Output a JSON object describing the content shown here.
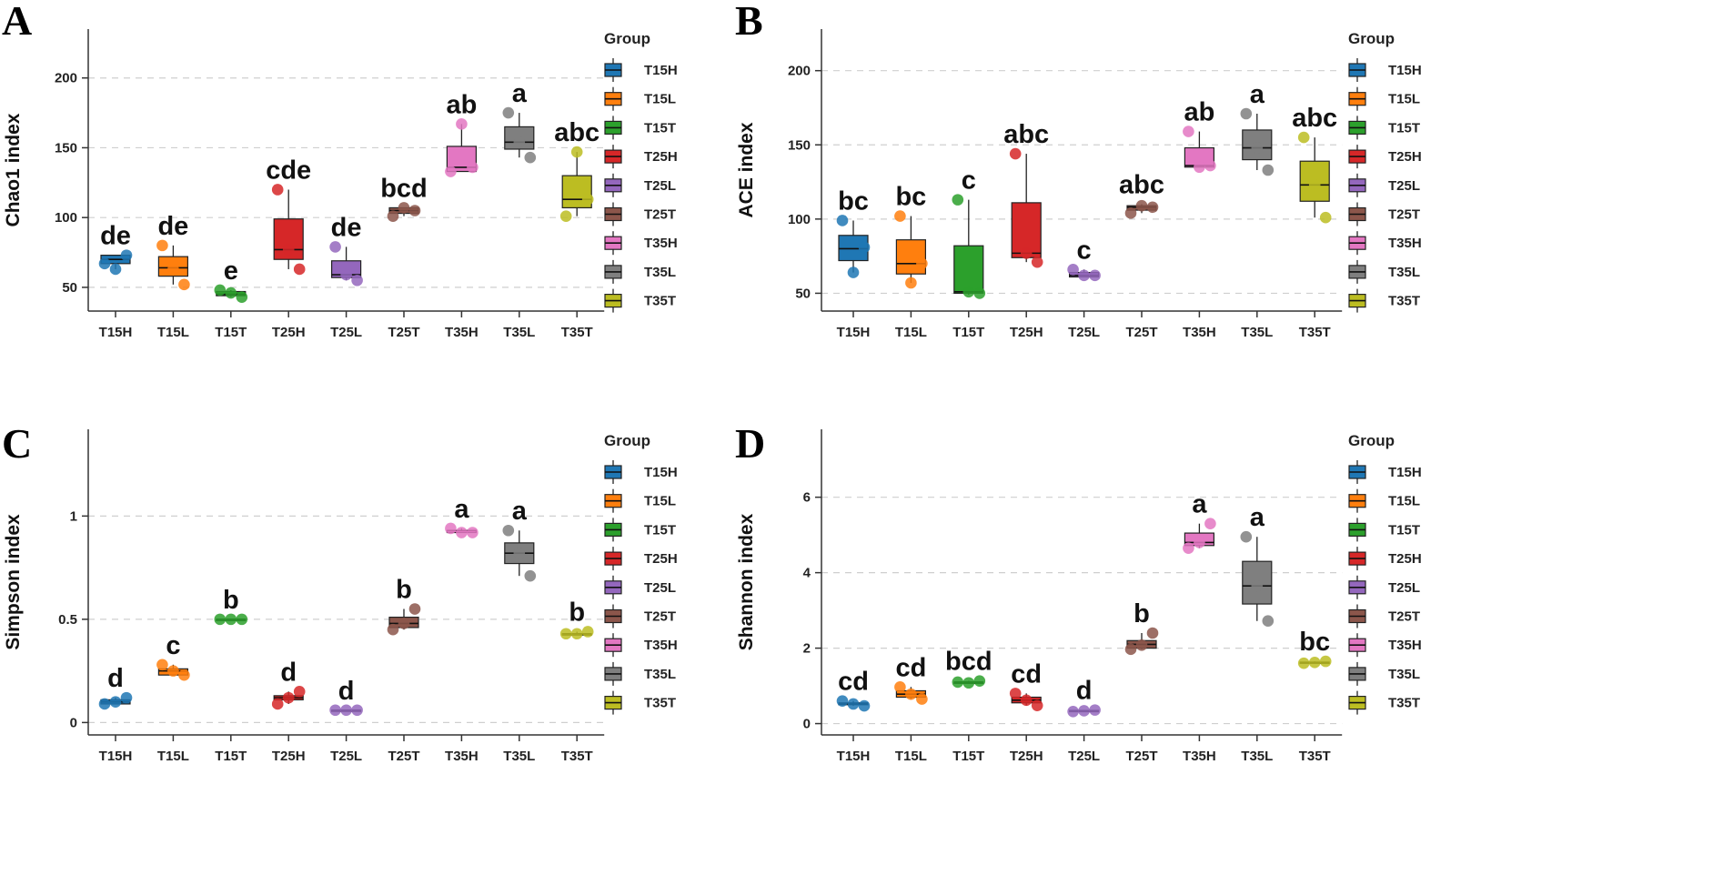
{
  "legend_title": "Group",
  "groups": [
    "T15H",
    "T15L",
    "T15T",
    "T25H",
    "T25L",
    "T25T",
    "T35H",
    "T35L",
    "T35T"
  ],
  "colors": [
    "#1f77b4",
    "#ff7f0e",
    "#2ca02c",
    "#d62728",
    "#9467bd",
    "#8c564b",
    "#e377c2",
    "#7f7f7f",
    "#bcbd22"
  ],
  "chart_data": [
    {
      "type": "box",
      "panel": "A",
      "ylabel": "Chao1 index",
      "ylim": [
        33,
        235
      ],
      "yticks": [
        50,
        100,
        150,
        200
      ],
      "ytick_labels": [
        "50",
        "100",
        "150",
        "200"
      ],
      "categories": [
        "T15H",
        "T15L",
        "T15T",
        "T25H",
        "T25L",
        "T25T",
        "T35H",
        "T35L",
        "T35T"
      ],
      "boxes": [
        {
          "q1": 67,
          "median": 70,
          "q3": 73,
          "wlo": 63,
          "whi": 73
        },
        {
          "q1": 58,
          "median": 64,
          "q3": 72,
          "wlo": 52,
          "whi": 80
        },
        {
          "q1": 44,
          "median": 45,
          "q3": 47,
          "wlo": 43,
          "whi": 48
        },
        {
          "q1": 70,
          "median": 77,
          "q3": 99,
          "wlo": 63,
          "whi": 120
        },
        {
          "q1": 57,
          "median": 59,
          "q3": 69,
          "wlo": 55,
          "whi": 79
        },
        {
          "q1": 103,
          "median": 105,
          "q3": 107,
          "wlo": 101,
          "whi": 107
        },
        {
          "q1": 133,
          "median": 136,
          "q3": 151,
          "wlo": 133,
          "whi": 167
        },
        {
          "q1": 149,
          "median": 154,
          "q3": 165,
          "wlo": 143,
          "whi": 175
        },
        {
          "q1": 107,
          "median": 113,
          "q3": 130,
          "wlo": 101,
          "whi": 147
        }
      ],
      "points": [
        [
          67,
          73,
          63
        ],
        [
          80,
          52,
          63
        ],
        [
          48,
          43,
          46
        ],
        [
          120,
          63,
          77
        ],
        [
          79,
          55,
          59
        ],
        [
          101,
          105,
          107
        ],
        [
          133,
          136,
          167
        ],
        [
          175,
          143,
          154
        ],
        [
          101,
          113,
          147
        ]
      ],
      "significance": [
        "de",
        "de",
        "e",
        "cde",
        "de",
        "bcd",
        "ab",
        "a",
        "abc"
      ]
    },
    {
      "type": "box",
      "panel": "B",
      "ylabel": "ACE index",
      "ylim": [
        38,
        228
      ],
      "yticks": [
        50,
        100,
        150,
        200
      ],
      "ytick_labels": [
        "50",
        "100",
        "150",
        "200"
      ],
      "categories": [
        "T15H",
        "T15L",
        "T15T",
        "T25H",
        "T25L",
        "T25T",
        "T35H",
        "T35L",
        "T35T"
      ],
      "boxes": [
        {
          "q1": 72,
          "median": 80,
          "q3": 89,
          "wlo": 64,
          "whi": 99
        },
        {
          "q1": 63,
          "median": 70,
          "q3": 86,
          "wlo": 57,
          "whi": 102
        },
        {
          "q1": 50,
          "median": 51,
          "q3": 82,
          "wlo": 49,
          "whi": 113
        },
        {
          "q1": 74,
          "median": 77,
          "q3": 111,
          "wlo": 71,
          "whi": 144
        },
        {
          "q1": 61,
          "median": 62,
          "q3": 64,
          "wlo": 61,
          "whi": 66
        },
        {
          "q1": 106,
          "median": 108,
          "q3": 109,
          "wlo": 104,
          "whi": 110
        },
        {
          "q1": 135,
          "median": 136,
          "q3": 148,
          "wlo": 135,
          "whi": 159
        },
        {
          "q1": 140,
          "median": 148,
          "q3": 160,
          "wlo": 133,
          "whi": 171
        },
        {
          "q1": 112,
          "median": 123,
          "q3": 139,
          "wlo": 101,
          "whi": 155
        }
      ],
      "points": [
        [
          99,
          81,
          64
        ],
        [
          102,
          70,
          57
        ],
        [
          113,
          50,
          51
        ],
        [
          144,
          71,
          77
        ],
        [
          66,
          62,
          62
        ],
        [
          104,
          108,
          109
        ],
        [
          159,
          136,
          135
        ],
        [
          171,
          133,
          148
        ],
        [
          155,
          101,
          123
        ]
      ],
      "significance": [
        "bc",
        "bc",
        "c",
        "abc",
        "c",
        "abc",
        "ab",
        "a",
        "abc"
      ]
    },
    {
      "type": "box",
      "panel": "C",
      "ylabel": "Simpson index",
      "ylim": [
        -0.06,
        1.42
      ],
      "yticks": [
        0,
        0.5,
        1
      ],
      "ytick_labels": [
        "0",
        "0.5",
        "1"
      ],
      "categories": [
        "T15H",
        "T15L",
        "T15T",
        "T25H",
        "T25L",
        "T25T",
        "T35H",
        "T35L",
        "T35T"
      ],
      "boxes": [
        {
          "q1": 0.09,
          "median": 0.1,
          "q3": 0.11,
          "wlo": 0.09,
          "whi": 0.12
        },
        {
          "q1": 0.23,
          "median": 0.25,
          "q3": 0.26,
          "wlo": 0.23,
          "whi": 0.28
        },
        {
          "q1": 0.5,
          "median": 0.5,
          "q3": 0.5,
          "wlo": 0.5,
          "whi": 0.5
        },
        {
          "q1": 0.11,
          "median": 0.12,
          "q3": 0.13,
          "wlo": 0.09,
          "whi": 0.15
        },
        {
          "q1": 0.06,
          "median": 0.06,
          "q3": 0.06,
          "wlo": 0.06,
          "whi": 0.06
        },
        {
          "q1": 0.46,
          "median": 0.48,
          "q3": 0.51,
          "wlo": 0.45,
          "whi": 0.55
        },
        {
          "q1": 0.92,
          "median": 0.93,
          "q3": 0.93,
          "wlo": 0.92,
          "whi": 0.94
        },
        {
          "q1": 0.77,
          "median": 0.82,
          "q3": 0.87,
          "wlo": 0.71,
          "whi": 0.93
        },
        {
          "q1": 0.43,
          "median": 0.43,
          "q3": 0.43,
          "wlo": 0.43,
          "whi": 0.44
        }
      ],
      "points": [
        [
          0.09,
          0.12,
          0.1
        ],
        [
          0.28,
          0.23,
          0.25
        ],
        [
          0.5,
          0.5,
          0.5
        ],
        [
          0.09,
          0.15,
          0.12
        ],
        [
          0.06,
          0.06,
          0.06
        ],
        [
          0.45,
          0.55,
          0.48
        ],
        [
          0.94,
          0.92,
          0.92
        ],
        [
          0.93,
          0.71,
          0.82
        ],
        [
          0.43,
          0.44,
          0.43
        ]
      ],
      "significance": [
        "d",
        "c",
        "b",
        "d",
        "d",
        "b",
        "a",
        "a",
        "b"
      ]
    },
    {
      "type": "box",
      "panel": "D",
      "ylabel": "Shannon index",
      "ylim": [
        -0.3,
        7.8
      ],
      "yticks": [
        0,
        2,
        4,
        6
      ],
      "ytick_labels": [
        "0",
        "2",
        "4",
        "6"
      ],
      "categories": [
        "T15H",
        "T15L",
        "T15T",
        "T25H",
        "T25L",
        "T25T",
        "T35H",
        "T35L",
        "T35T"
      ],
      "boxes": [
        {
          "q1": 0.5,
          "median": 0.52,
          "q3": 0.55,
          "wlo": 0.47,
          "whi": 0.6
        },
        {
          "q1": 0.7,
          "median": 0.78,
          "q3": 0.87,
          "wlo": 0.65,
          "whi": 0.97
        },
        {
          "q1": 1.1,
          "median": 1.1,
          "q3": 1.1,
          "wlo": 1.08,
          "whi": 1.13
        },
        {
          "q1": 0.55,
          "median": 0.62,
          "q3": 0.7,
          "wlo": 0.48,
          "whi": 0.8
        },
        {
          "q1": 0.33,
          "median": 0.34,
          "q3": 0.35,
          "wlo": 0.32,
          "whi": 0.36
        },
        {
          "q1": 2.0,
          "median": 2.1,
          "q3": 2.2,
          "wlo": 1.97,
          "whi": 2.4
        },
        {
          "q1": 4.72,
          "median": 4.8,
          "q3": 5.05,
          "wlo": 4.65,
          "whi": 5.3
        },
        {
          "q1": 3.17,
          "median": 3.65,
          "q3": 4.3,
          "wlo": 2.72,
          "whi": 4.95
        },
        {
          "q1": 1.61,
          "median": 1.62,
          "q3": 1.63,
          "wlo": 1.6,
          "whi": 1.65
        }
      ],
      "points": [
        [
          0.6,
          0.47,
          0.52
        ],
        [
          0.97,
          0.65,
          0.78
        ],
        [
          1.1,
          1.13,
          1.08
        ],
        [
          0.8,
          0.48,
          0.62
        ],
        [
          0.32,
          0.36,
          0.34
        ],
        [
          1.97,
          2.4,
          2.08
        ],
        [
          4.65,
          5.3,
          4.8
        ],
        [
          4.95,
          2.72,
          3.65
        ],
        [
          1.6,
          1.65,
          1.62
        ]
      ],
      "significance": [
        "cd",
        "cd",
        "bcd",
        "cd",
        "d",
        "b",
        "a",
        "a",
        "bc"
      ]
    }
  ]
}
